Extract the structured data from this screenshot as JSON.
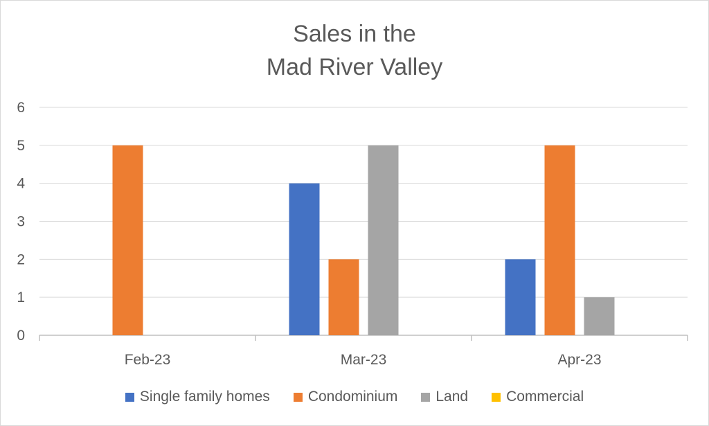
{
  "chart_data": {
    "type": "bar",
    "title_lines": [
      "Sales in the",
      "Mad River Valley"
    ],
    "categories": [
      "Feb-23",
      "Mar-23",
      "Apr-23"
    ],
    "series": [
      {
        "name": "Single family homes",
        "color": "#4472c4",
        "values": [
          0,
          4,
          2
        ]
      },
      {
        "name": "Condominium",
        "color": "#ed7d31",
        "values": [
          5,
          2,
          5
        ]
      },
      {
        "name": "Land",
        "color": "#a5a5a5",
        "values": [
          0,
          5,
          1
        ]
      },
      {
        "name": "Commercial",
        "color": "#ffc000",
        "values": [
          0,
          0,
          0
        ]
      }
    ],
    "y_ticks": [
      "0",
      "1",
      "2",
      "3",
      "4",
      "5",
      "6"
    ],
    "ylim": [
      0,
      6
    ],
    "grid": true,
    "legend_position": "bottom",
    "xlabel": "",
    "ylabel": ""
  }
}
